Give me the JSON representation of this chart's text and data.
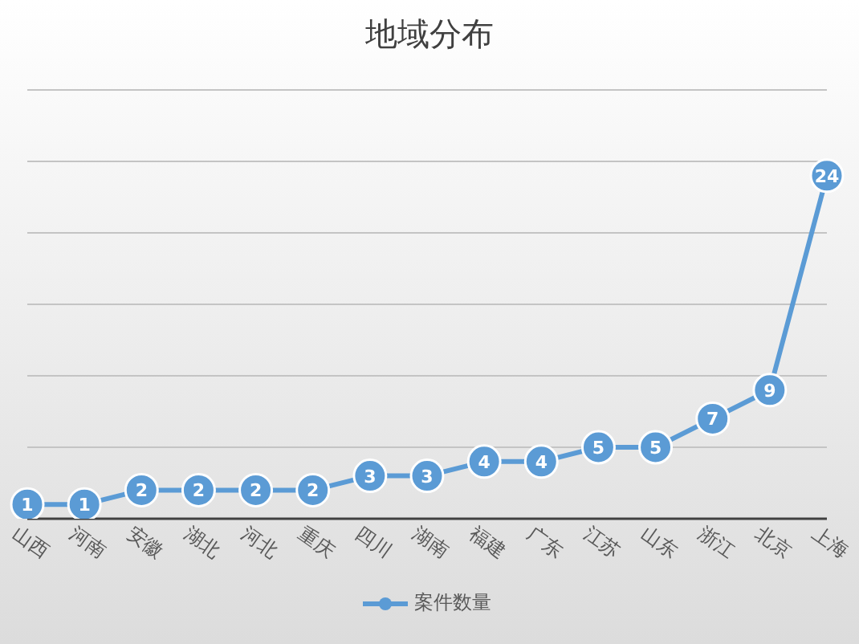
{
  "chart_data": {
    "type": "line",
    "title": "地域分布",
    "categories": [
      "山西",
      "河南",
      "安徽",
      "湖北",
      "河北",
      "重庆",
      "四川",
      "湖南",
      "福建",
      "广东",
      "江苏",
      "山东",
      "浙江",
      "北京",
      "上海"
    ],
    "series": [
      {
        "name": "案件数量",
        "color": "#5b9bd5",
        "values": [
          1,
          1,
          2,
          2,
          2,
          2,
          3,
          3,
          4,
          4,
          5,
          5,
          7,
          9,
          24
        ]
      }
    ],
    "ylim": [
      0,
      30
    ],
    "yticks": [
      {
        "value": 0,
        "label": null
      },
      {
        "value": 5,
        "label": null
      },
      {
        "value": 10,
        "label": null
      },
      {
        "value": 15,
        "label": null
      },
      {
        "value": 20,
        "label": null
      },
      {
        "value": 25,
        "label": null
      },
      {
        "value": 30,
        "label": null
      }
    ],
    "grid": "y",
    "legend": "bottom",
    "tick_labels": "x",
    "marker": "circle",
    "data_labels": true
  }
}
